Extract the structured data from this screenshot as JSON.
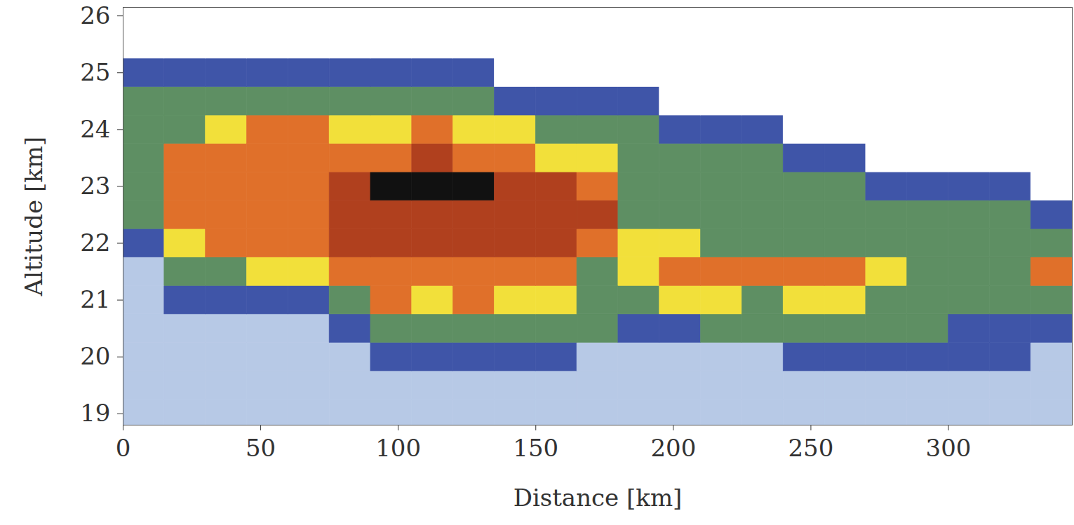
{
  "chart_data": {
    "type": "heatmap",
    "x_label": "Distance [km]",
    "y_label": "Altitude [km]",
    "xlim": [
      0,
      345
    ],
    "ylim": [
      18.8,
      26.15
    ],
    "xticks": [
      0,
      50,
      100,
      150,
      200,
      250,
      300
    ],
    "yticks": [
      19,
      20,
      21,
      22,
      23,
      24,
      25,
      26
    ],
    "x_edges": [
      0,
      15,
      30,
      45,
      60,
      75,
      90,
      105,
      120,
      135,
      150,
      165,
      180,
      195,
      210,
      225,
      240,
      255,
      270,
      285,
      300,
      315,
      330,
      345
    ],
    "y_edges": [
      18.75,
      19.25,
      19.75,
      20.25,
      20.75,
      21.25,
      21.75,
      22.25,
      22.75,
      23.25,
      23.75,
      24.25,
      24.75,
      25.25,
      25.75,
      26.25
    ],
    "color_levels": [
      0,
      1,
      2,
      3,
      4,
      5,
      6,
      7
    ],
    "colors": [
      "#ffffff",
      "#b7c9e6",
      "#3f55a8",
      "#5e8f63",
      "#f2e03a",
      "#e0702a",
      "#b0401e",
      "#111111"
    ],
    "cells": [
      [
        1,
        1,
        1,
        1,
        1,
        1,
        1,
        1,
        1,
        1,
        1,
        1,
        1,
        1,
        1,
        1,
        1,
        1,
        1,
        1,
        1,
        1,
        1
      ],
      [
        1,
        1,
        1,
        1,
        1,
        1,
        1,
        1,
        1,
        1,
        1,
        1,
        1,
        1,
        1,
        1,
        1,
        1,
        1,
        1,
        1,
        1,
        1
      ],
      [
        1,
        1,
        1,
        1,
        1,
        1,
        2,
        2,
        2,
        2,
        2,
        1,
        1,
        1,
        1,
        1,
        2,
        2,
        2,
        2,
        2,
        2,
        1
      ],
      [
        1,
        1,
        1,
        1,
        1,
        2,
        3,
        3,
        3,
        3,
        3,
        3,
        2,
        2,
        3,
        3,
        3,
        3,
        3,
        3,
        2,
        2,
        2
      ],
      [
        1,
        2,
        2,
        2,
        2,
        3,
        5,
        4,
        5,
        4,
        4,
        3,
        3,
        4,
        4,
        3,
        4,
        4,
        3,
        3,
        3,
        3,
        3
      ],
      [
        1,
        3,
        3,
        4,
        4,
        5,
        5,
        5,
        5,
        5,
        5,
        3,
        4,
        5,
        5,
        5,
        5,
        5,
        4,
        3,
        3,
        3,
        5
      ],
      [
        2,
        4,
        5,
        5,
        5,
        6,
        6,
        6,
        6,
        6,
        6,
        5,
        4,
        4,
        3,
        3,
        3,
        3,
        3,
        3,
        3,
        3,
        3
      ],
      [
        3,
        5,
        5,
        5,
        5,
        6,
        6,
        6,
        6,
        6,
        6,
        6,
        3,
        3,
        3,
        3,
        3,
        3,
        3,
        3,
        3,
        3,
        2
      ],
      [
        3,
        5,
        5,
        5,
        5,
        6,
        7,
        7,
        7,
        6,
        6,
        5,
        3,
        3,
        3,
        3,
        3,
        3,
        2,
        2,
        2,
        2,
        0
      ],
      [
        3,
        5,
        5,
        5,
        5,
        5,
        5,
        6,
        5,
        5,
        4,
        4,
        3,
        3,
        3,
        3,
        2,
        2,
        0,
        0,
        0,
        0,
        0
      ],
      [
        3,
        3,
        4,
        5,
        5,
        4,
        4,
        5,
        4,
        4,
        3,
        3,
        3,
        2,
        2,
        2,
        0,
        0,
        0,
        0,
        0,
        0,
        0
      ],
      [
        3,
        3,
        3,
        3,
        3,
        3,
        3,
        3,
        3,
        2,
        2,
        2,
        2,
        0,
        0,
        0,
        0,
        0,
        0,
        0,
        0,
        0,
        0
      ],
      [
        2,
        2,
        2,
        2,
        2,
        2,
        2,
        2,
        2,
        0,
        0,
        0,
        0,
        0,
        0,
        0,
        0,
        0,
        0,
        0,
        0,
        0,
        0
      ],
      [
        0,
        0,
        0,
        0,
        0,
        0,
        0,
        0,
        0,
        0,
        0,
        0,
        0,
        0,
        0,
        0,
        0,
        0,
        0,
        0,
        0,
        0,
        0
      ],
      [
        0,
        0,
        0,
        0,
        0,
        0,
        0,
        0,
        0,
        0,
        0,
        0,
        0,
        0,
        0,
        0,
        0,
        0,
        0,
        0,
        0,
        0,
        0
      ]
    ]
  }
}
